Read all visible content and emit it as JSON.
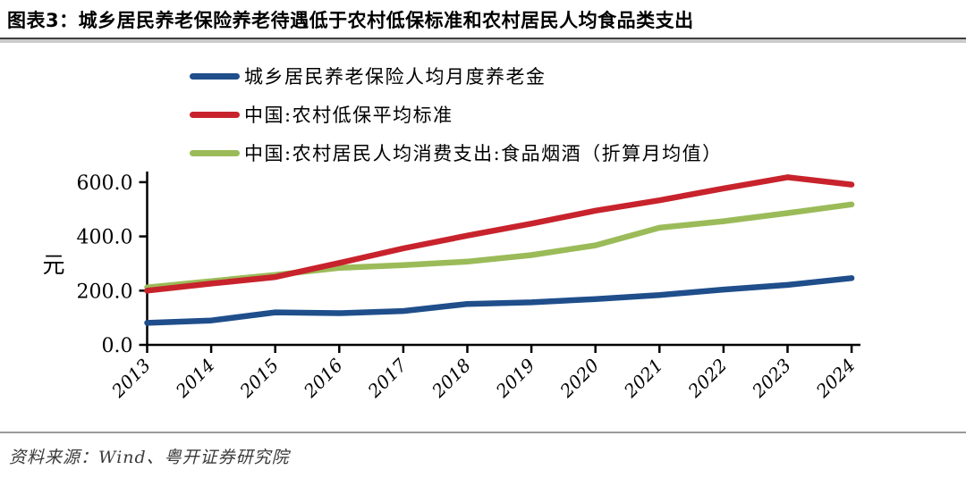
{
  "header": {
    "title": "图表3：城乡居民养老保险养老待遇低于农村低保标准和农村居民人均食品类支出"
  },
  "chart_data": {
    "type": "line",
    "title": "",
    "xlabel": "",
    "ylabel": "元",
    "categories": [
      "2013",
      "2014",
      "2015",
      "2016",
      "2017",
      "2018",
      "2019",
      "2020",
      "2021",
      "2022",
      "2023",
      "2024"
    ],
    "series": [
      {
        "name": "城乡居民养老保险人均月度养老金",
        "color": "#1F4E8B",
        "values": [
          81,
          90,
          120,
          117,
          125,
          151,
          157,
          169,
          184,
          204,
          221,
          246
        ]
      },
      {
        "name": "中国:农村低保平均标准",
        "color": "#C8232C",
        "values": [
          200,
          226,
          250,
          302,
          356,
          403,
          447,
          495,
          533,
          577,
          618,
          591
        ]
      },
      {
        "name": "中国:农村居民人均消费支出:食品烟酒（折算月均值）",
        "color": "#9BBB59",
        "values": [
          212,
          235,
          258,
          284,
          294,
          307,
          331,
          367,
          432,
          456,
          486,
          518
        ]
      }
    ],
    "yticks": [
      0,
      200,
      400,
      600
    ],
    "ytick_labels": [
      "0.0",
      "200.0",
      "400.0",
      "600.0"
    ],
    "ylim": [
      0,
      640
    ],
    "grid": false,
    "legend_position": "top-left",
    "axis_color": "#000000"
  },
  "footer": {
    "source": "资料来源：Wind、粤开证券研究院"
  }
}
